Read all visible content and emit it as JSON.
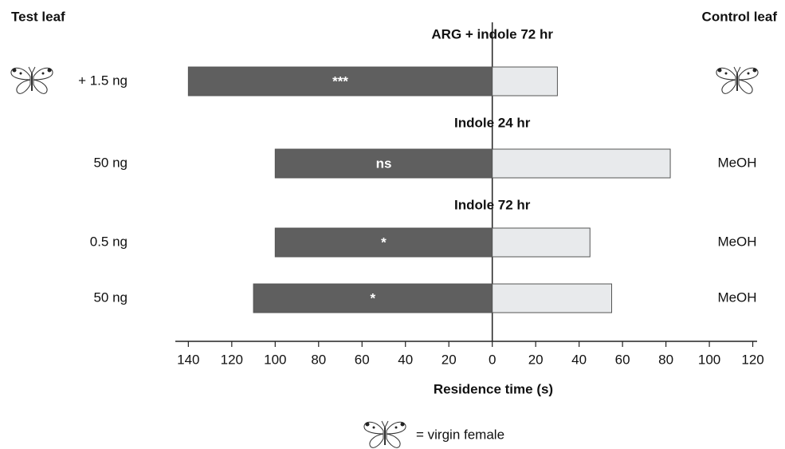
{
  "chart_data": {
    "type": "diverging-bar",
    "left_header": "Test leaf",
    "right_header": "Control leaf",
    "group_titles": [
      "ARG + indole 72 hr",
      "Indole 24 hr",
      "Indole 72 hr"
    ],
    "categories": [
      "+ 1.5 ng",
      "50 ng",
      "0.5 ng",
      "50 ng"
    ],
    "control_labels": [
      null,
      "MeOH",
      "MeOH",
      "MeOH"
    ],
    "significance": [
      "***",
      "ns",
      "*",
      "*"
    ],
    "series": [
      {
        "name": "Test leaf",
        "color": "#5f5f5f",
        "values": [
          -140,
          -100,
          -100,
          -110
        ]
      },
      {
        "name": "Control leaf",
        "color": "#e8eaec",
        "values": [
          30,
          82,
          45,
          55
        ]
      }
    ],
    "xlabel": "Residence time (s)",
    "xlim": [
      -146,
      122
    ],
    "xticks": [
      {
        "value": -140,
        "label": "140"
      },
      {
        "value": -120,
        "label": "120"
      },
      {
        "value": -100,
        "label": "100"
      },
      {
        "value": -80,
        "label": "80"
      },
      {
        "value": -60,
        "label": "60"
      },
      {
        "value": -40,
        "label": "40"
      },
      {
        "value": -20,
        "label": "20"
      },
      0,
      20,
      40,
      60,
      80,
      100,
      120
    ],
    "legend_label": "= virgin female"
  }
}
